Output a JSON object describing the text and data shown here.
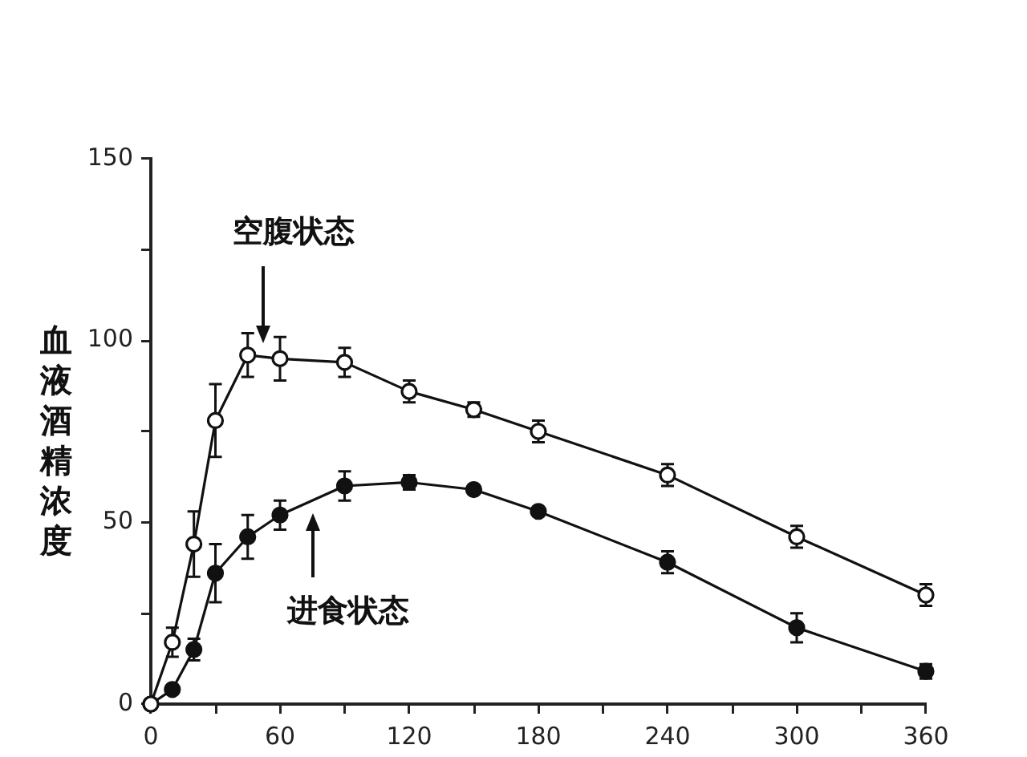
{
  "chart_data": {
    "type": "line",
    "ylabel": "血液酒精浓度",
    "x": [
      0,
      10,
      20,
      30,
      45,
      60,
      90,
      120,
      150,
      180,
      240,
      300,
      360
    ],
    "series": [
      {
        "color": "#111111",
        "values": [
          0,
          17,
          44,
          78,
          96,
          95,
          94,
          86,
          81,
          75,
          63,
          46,
          30
        ],
        "errors": [
          null,
          4,
          9,
          10,
          6,
          6,
          4,
          3,
          2,
          3,
          3,
          3,
          3
        ]
      },
      {
        "color": "#111111",
        "values": [
          0,
          4,
          15,
          36,
          46,
          52,
          60,
          61,
          59,
          53,
          39,
          21,
          9
        ],
        "errors": [
          null,
          1,
          3,
          8,
          6,
          4,
          4,
          2,
          1,
          1,
          3,
          4,
          2
        ]
      }
    ],
    "xlim": [
      0,
      360
    ],
    "xticks": [
      0,
      {
        "value": 30,
        "label": null
      },
      60,
      {
        "value": 90,
        "label": null
      },
      120,
      {
        "value": 150,
        "label": null
      },
      180,
      {
        "value": 210,
        "label": null
      },
      240,
      {
        "value": 270,
        "label": null
      },
      300,
      {
        "value": 330,
        "label": null
      },
      360
    ],
    "ylim": [
      0,
      150
    ],
    "yticks": [
      0,
      {
        "value": 25,
        "label": null
      },
      50,
      {
        "value": 75,
        "label": null
      },
      100,
      {
        "value": 125,
        "label": null
      },
      150
    ],
    "annotations": [
      "空腹状态",
      "进食状态"
    ],
    "grid": false,
    "marker": "circle",
    "line_style": "solid"
  }
}
